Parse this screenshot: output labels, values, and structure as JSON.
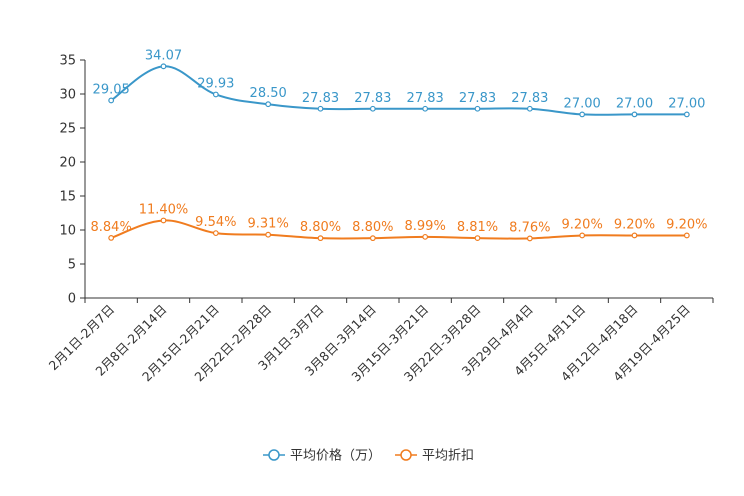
{
  "chart_data": {
    "type": "line",
    "title": "",
    "xlabel": "",
    "ylabel": "",
    "ylim": [
      0,
      35
    ],
    "yticks": [
      0,
      5,
      10,
      15,
      20,
      25,
      30,
      35
    ],
    "grid": false,
    "legend_position": "bottom-center",
    "categories": [
      "2月1日-2月7日",
      "2月8日-2月14日",
      "2月15日-2月21日",
      "2月22日-2月28日",
      "3月1日-3月7日",
      "3月8日-3月14日",
      "3月15日-3月21日",
      "3月22日-3月28日",
      "3月29日-4月4日",
      "4月5日-4月11日",
      "4月12日-4月18日",
      "4月19日-4月25日"
    ],
    "series": [
      {
        "name": "平均价格（万）",
        "color": "#3a97c9",
        "values": [
          29.05,
          34.07,
          29.93,
          28.5,
          27.83,
          27.83,
          27.83,
          27.83,
          27.83,
          27.0,
          27.0,
          27.0
        ],
        "labels": [
          "29.05",
          "34.07",
          "29.93",
          "28.50",
          "27.83",
          "27.83",
          "27.83",
          "27.83",
          "27.83",
          "27.00",
          "27.00",
          "27.00"
        ]
      },
      {
        "name": "平均折扣",
        "color": "#f07c1f",
        "values": [
          8.84,
          11.4,
          9.54,
          9.31,
          8.8,
          8.8,
          8.99,
          8.81,
          8.76,
          9.2,
          9.2,
          9.2
        ],
        "labels": [
          "8.84%",
          "11.40%",
          "9.54%",
          "9.31%",
          "8.80%",
          "8.80%",
          "8.99%",
          "8.81%",
          "8.76%",
          "9.20%",
          "9.20%",
          "9.20%"
        ]
      }
    ]
  }
}
